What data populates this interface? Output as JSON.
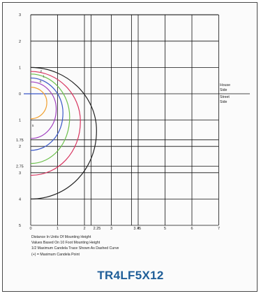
{
  "diagram": {
    "y_labels": [
      {
        "text": "3",
        "v": 3
      },
      {
        "text": "2",
        "v": 2
      },
      {
        "text": "1",
        "v": 1
      },
      {
        "text": "0",
        "v": 0
      },
      {
        "text": "1",
        "v": -1
      },
      {
        "text": "1.75",
        "v": -1.75
      },
      {
        "text": "2",
        "v": -2
      },
      {
        "text": "2.75",
        "v": -2.75
      },
      {
        "text": "3",
        "v": -3
      },
      {
        "text": "4",
        "v": -4
      },
      {
        "text": "5",
        "v": -5
      }
    ],
    "x_labels": [
      {
        "text": "0",
        "v": 0
      },
      {
        "text": "1",
        "v": 1
      },
      {
        "text": "2",
        "v": 2
      },
      {
        "text": "2.25",
        "v": 2.25
      },
      {
        "text": "3",
        "v": 3
      },
      {
        "text": "3.75",
        "v": 3.75
      },
      {
        "text": "4",
        "v": 4
      },
      {
        "text": "5",
        "v": 5
      },
      {
        "text": "6",
        "v": 6
      },
      {
        "text": "7",
        "v": 7
      }
    ],
    "extra_h_lines": [
      1.75,
      2.75
    ],
    "extra_v_lines": [
      2.25,
      3.75
    ],
    "side_labels": [
      "House",
      "Side",
      "Street",
      "Side"
    ],
    "contour_labels": [
      "2",
      "1",
      ".5",
      "5"
    ],
    "isofootcandle_curves": [
      {
        "color": "#222222",
        "x_max": 2.45,
        "top": 1.0,
        "bottom": -4.0
      },
      {
        "color": "#d8345f",
        "x_max": 1.85,
        "top": 0.85,
        "bottom": -3.1
      },
      {
        "color": "#6bc04b",
        "x_max": 1.45,
        "top": 0.75,
        "bottom": -2.65
      },
      {
        "color": "#3a57c8",
        "x_max": 1.2,
        "top": 0.6,
        "bottom": -2.15
      },
      {
        "color": "#a03ec0",
        "x_max": 0.95,
        "top": 0.45,
        "bottom": -1.7
      },
      {
        "color": "#f0a030",
        "x_max": 0.6,
        "top": 0.25,
        "bottom": -0.95
      }
    ],
    "notes": [
      "Distance In Units Of Mounting Height",
      "Values Based On 10 Foot Mounting Height",
      "1/2 Maximum Candela Trace Shown As Dashed Curve",
      "(+) = Maximum Candela Point"
    ],
    "model": "TR4LF5X12"
  }
}
